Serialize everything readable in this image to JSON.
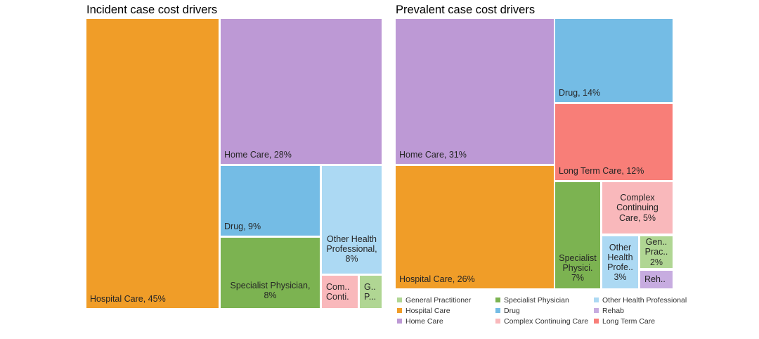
{
  "palette": {
    "hospital_care": "#F09D28",
    "home_care": "#BD99D5",
    "drug": "#74BCE5",
    "specialist_physician": "#7CB351",
    "other_health_professional": "#ACD9F3",
    "complex_continuing_care": "#F9B8BB",
    "general_practitioner": "#B0D693",
    "long_term_care": "#F87E78",
    "rehab": "#C7ACE0"
  },
  "incident": {
    "title": "Incident case cost drivers",
    "cells": {
      "hospital_care": "Hospital Care, 45%",
      "home_care": "Home Care, 28%",
      "drug": "Drug, 9%",
      "specialist_physician": "Specialist Physician,\n8%",
      "other_health_professional": "Other Health\nProfessional,\n8%",
      "complex_continuing_care": "Com..\nConti.",
      "general_practitioner": "G..\nP..."
    }
  },
  "prevalent": {
    "title": "Prevalent case cost drivers",
    "cells": {
      "home_care": "Home Care, 31%",
      "hospital_care": "Hospital Care, 26%",
      "drug": "Drug, 14%",
      "long_term_care": "Long Term Care, 12%",
      "specialist_physician": "Specialist\nPhysici.\n7%",
      "complex_continuing_care": "Complex\nContinuing\nCare, 5%",
      "other_health_professional": "Other\nHealth\nProfe..\n3%",
      "general_practitioner": "Gen..\nPrac..\n2%",
      "rehab": "Reh.."
    }
  },
  "legend": {
    "items": [
      {
        "label": "General Practitioner",
        "color": "#B0D693"
      },
      {
        "label": "Specialist Physician",
        "color": "#7CB351"
      },
      {
        "label": "Other Health Professional",
        "color": "#ACD9F3"
      },
      {
        "label": "Hospital Care",
        "color": "#F09D28"
      },
      {
        "label": "Drug",
        "color": "#74BCE5"
      },
      {
        "label": "Rehab",
        "color": "#C7ACE0"
      },
      {
        "label": "Home Care",
        "color": "#BD99D5"
      },
      {
        "label": "Complex Continuing Care",
        "color": "#F9B8BB"
      },
      {
        "label": "Long Term Care",
        "color": "#F87E78"
      }
    ]
  },
  "chart_data": [
    {
      "type": "treemap",
      "title": "Incident case cost drivers",
      "unit": "percent",
      "items": [
        {
          "label": "Hospital Care",
          "value_pct": 45
        },
        {
          "label": "Home Care",
          "value_pct": 28
        },
        {
          "label": "Drug",
          "value_pct": 9
        },
        {
          "label": "Specialist Physician",
          "value_pct": 8
        },
        {
          "label": "Other Health Professional",
          "value_pct": 8
        },
        {
          "label": "Complex Continuing Care",
          "value_pct": null
        },
        {
          "label": "General Practitioner",
          "value_pct": null
        }
      ]
    },
    {
      "type": "treemap",
      "title": "Prevalent case cost drivers",
      "unit": "percent",
      "items": [
        {
          "label": "Home Care",
          "value_pct": 31
        },
        {
          "label": "Hospital Care",
          "value_pct": 26
        },
        {
          "label": "Drug",
          "value_pct": 14
        },
        {
          "label": "Long Term Care",
          "value_pct": 12
        },
        {
          "label": "Specialist Physician",
          "value_pct": 7
        },
        {
          "label": "Complex Continuing Care",
          "value_pct": 5
        },
        {
          "label": "Other Health Professional",
          "value_pct": 3
        },
        {
          "label": "General Practitioner",
          "value_pct": 2
        },
        {
          "label": "Rehab",
          "value_pct": null
        }
      ]
    }
  ]
}
